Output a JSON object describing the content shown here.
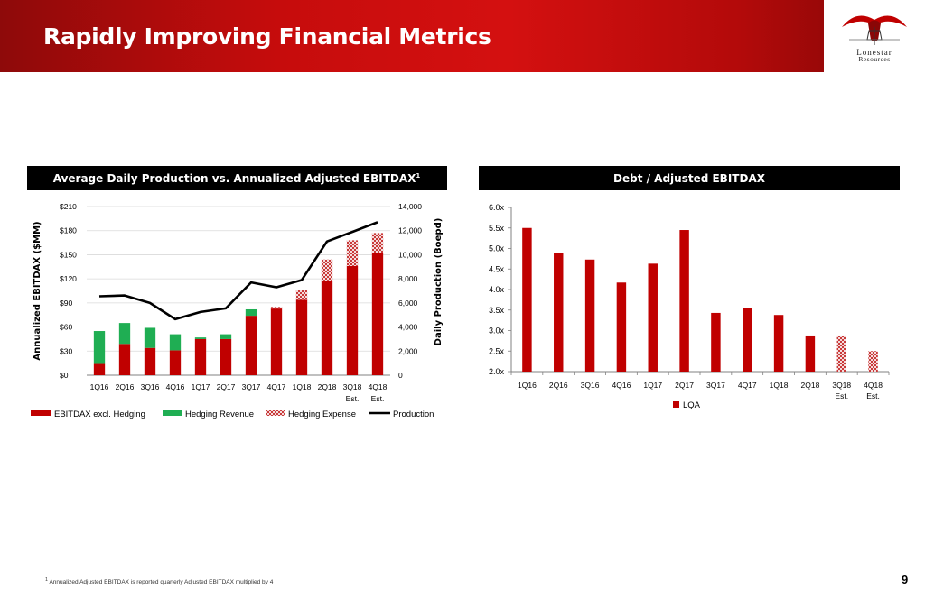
{
  "header": {
    "title": "Rapidly Improving Financial Metrics",
    "logo": {
      "name": "Lonestar",
      "tagline": "Resources"
    },
    "colors": {
      "primary": "#c00000",
      "dark": "#7a0606"
    }
  },
  "footnote": {
    "mark": "1",
    "text": "Annualized Adjusted EBITDAX is reported quarterly Adjusted EBITDAX multiplied by 4"
  },
  "page_number": "9",
  "chart_data": [
    {
      "type": "bar",
      "stacked": true,
      "title": "Average Daily Production vs. Annualized Adjusted EBITDAX",
      "title_superscript": "1",
      "categories": [
        "1Q16",
        "2Q16",
        "3Q16",
        "4Q16",
        "1Q17",
        "2Q17",
        "3Q17",
        "4Q17",
        "1Q18",
        "2Q18",
        "3Q18",
        "4Q18"
      ],
      "category_sublabels": [
        "",
        "",
        "",
        "",
        "",
        "",
        "",
        "",
        "",
        "",
        "Est.",
        "Est."
      ],
      "ylabel": "Annualized EBITDAX ($MM)",
      "y2label": "Daily Production (Boepd)",
      "ylim": [
        0,
        210
      ],
      "y2lim": [
        0,
        14000
      ],
      "yticks": [
        "$0",
        "$30",
        "$60",
        "$90",
        "$120",
        "$150",
        "$180",
        "$210"
      ],
      "y2ticks": [
        "0",
        "2,000",
        "4,000",
        "6,000",
        "8,000",
        "10,000",
        "12,000",
        "14,000"
      ],
      "legend_position": "bottom",
      "series": [
        {
          "name": "EBITDAX excl. Hedging",
          "kind": "bar",
          "color": "#c00000",
          "values": [
            14,
            39,
            34,
            31,
            45,
            45,
            74,
            83,
            94,
            118,
            136,
            152
          ]
        },
        {
          "name": "Hedging Revenue",
          "kind": "bar",
          "color": "#1fae53",
          "values": [
            41,
            26,
            25,
            20,
            2,
            6,
            8,
            0,
            0,
            0,
            0,
            0
          ]
        },
        {
          "name": "Hedging Expense",
          "kind": "bar-hatched",
          "color": "#d64545",
          "values": [
            0,
            0,
            0,
            0,
            0,
            0,
            0,
            2,
            12,
            26,
            32,
            25
          ]
        },
        {
          "name": "Production",
          "kind": "line",
          "color": "#000000",
          "axis": "secondary",
          "values": [
            6550,
            6620,
            6000,
            4650,
            5250,
            5550,
            7700,
            7300,
            7900,
            11100,
            11900,
            12700
          ]
        }
      ]
    },
    {
      "type": "bar",
      "title": "Debt / Adjusted EBITDAX",
      "categories": [
        "1Q16",
        "2Q16",
        "3Q16",
        "4Q16",
        "1Q17",
        "2Q17",
        "3Q17",
        "4Q17",
        "1Q18",
        "2Q18",
        "3Q18",
        "4Q18"
      ],
      "category_sublabels": [
        "",
        "",
        "",
        "",
        "",
        "",
        "",
        "",
        "",
        "",
        "Est.",
        "Est."
      ],
      "ylim": [
        2.0,
        6.0
      ],
      "yticks": [
        "2.0x",
        "2.5x",
        "3.0x",
        "3.5x",
        "4.0x",
        "4.5x",
        "5.0x",
        "5.5x",
        "6.0x"
      ],
      "legend_position": "bottom",
      "series": [
        {
          "name": "LQA",
          "color": "#c00000",
          "values": [
            5.5,
            4.9,
            4.73,
            4.17,
            4.63,
            5.45,
            3.43,
            3.55,
            3.38,
            2.88,
            2.88,
            2.5
          ],
          "hatched": [
            false,
            false,
            false,
            false,
            false,
            false,
            false,
            false,
            false,
            false,
            true,
            true
          ]
        }
      ]
    }
  ]
}
